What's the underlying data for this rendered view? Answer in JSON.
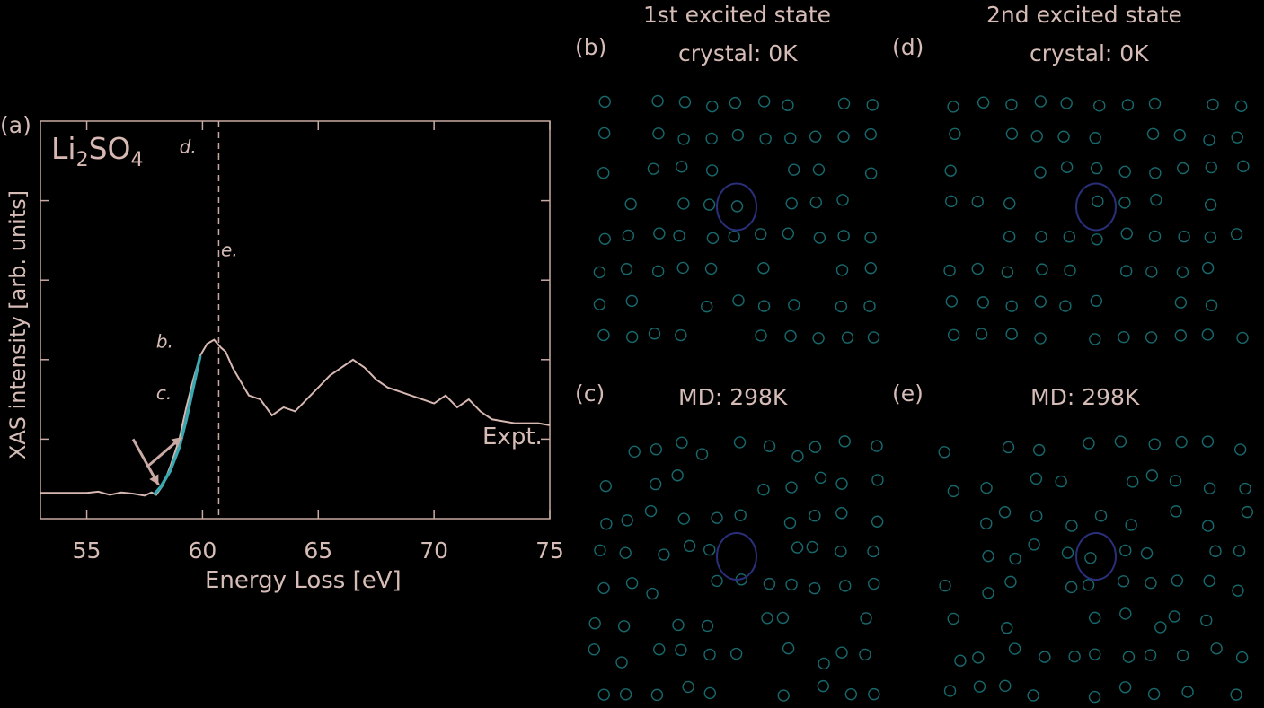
{
  "panels": {
    "a": {
      "label": "(a)"
    },
    "b": {
      "label": "(b)",
      "title_line1": "1st excited state",
      "title_line2": "crystal: 0K"
    },
    "c": {
      "label": "(c)",
      "title_line1": "MD: 298K"
    },
    "d": {
      "label": "(d)",
      "title_line1": "2nd excited state",
      "title_line2": "crystal: 0K"
    },
    "e": {
      "label": "(e)",
      "title_line1": "MD: 298K"
    }
  },
  "chart_data": {
    "type": "line",
    "compound": {
      "base1": "Li",
      "sub1": "2",
      "base2": "SO",
      "sub2": "4"
    },
    "xlabel": "Energy Loss [eV]",
    "ylabel": "XAS intensity [arb. units]",
    "xlim": [
      53,
      75
    ],
    "ylim": [
      0,
      1
    ],
    "xticks": [
      "55",
      "60",
      "65",
      "70",
      "75"
    ],
    "series": [
      {
        "name": "Expt.",
        "color": "#d8b8b2",
        "x": [
          53.0,
          54.0,
          55.0,
          55.5,
          56.0,
          56.5,
          57.0,
          57.5,
          57.8,
          58.0,
          58.3,
          58.6,
          59.0,
          59.3,
          59.6,
          59.9,
          60.2,
          60.5,
          60.8,
          61.0,
          61.3,
          61.6,
          62.0,
          62.5,
          63.0,
          63.5,
          64.0,
          64.5,
          65.0,
          65.5,
          66.0,
          66.5,
          67.0,
          67.5,
          68.0,
          68.5,
          69.0,
          69.5,
          70.0,
          70.5,
          71.0,
          71.5,
          72.0,
          72.5,
          73.0,
          73.5,
          74.0,
          74.5,
          75.0
        ],
        "y": [
          0.065,
          0.065,
          0.065,
          0.068,
          0.06,
          0.066,
          0.063,
          0.058,
          0.066,
          0.06,
          0.085,
          0.13,
          0.2,
          0.28,
          0.35,
          0.41,
          0.44,
          0.45,
          0.43,
          0.42,
          0.38,
          0.35,
          0.31,
          0.3,
          0.26,
          0.28,
          0.27,
          0.3,
          0.33,
          0.36,
          0.38,
          0.4,
          0.38,
          0.35,
          0.33,
          0.32,
          0.31,
          0.3,
          0.29,
          0.31,
          0.28,
          0.3,
          0.27,
          0.25,
          0.245,
          0.24,
          0.24,
          0.24,
          0.235
        ]
      },
      {
        "name": "",
        "color": "#3aa8b0",
        "x": [
          57.9,
          58.2,
          58.6,
          59.0,
          59.3,
          59.6,
          59.9
        ],
        "y": [
          0.06,
          0.08,
          0.12,
          0.18,
          0.25,
          0.33,
          0.41
        ]
      }
    ],
    "annotations": {
      "expt_label": "Expt.",
      "dashed_x": 60.7,
      "markers": [
        {
          "text": "d.",
          "x": 59.0,
          "y": 0.92
        },
        {
          "text": "e.",
          "x": 60.8,
          "y": 0.66
        },
        {
          "text": "b.",
          "x": 58.0,
          "y": 0.43
        },
        {
          "text": "c.",
          "x": 58.0,
          "y": 0.3
        }
      ],
      "arrows": [
        {
          "from_x": 57.0,
          "from_y": 0.2,
          "to_x": 58.1,
          "to_y": 0.085
        },
        {
          "from_x": 57.6,
          "from_y": 0.13,
          "to_x": 59.1,
          "to_y": 0.205
        }
      ]
    },
    "grid": false
  },
  "colors": {
    "frame": "#c9a9a3",
    "atom": "#1f8c92",
    "orbital": "#2a2f7a"
  }
}
